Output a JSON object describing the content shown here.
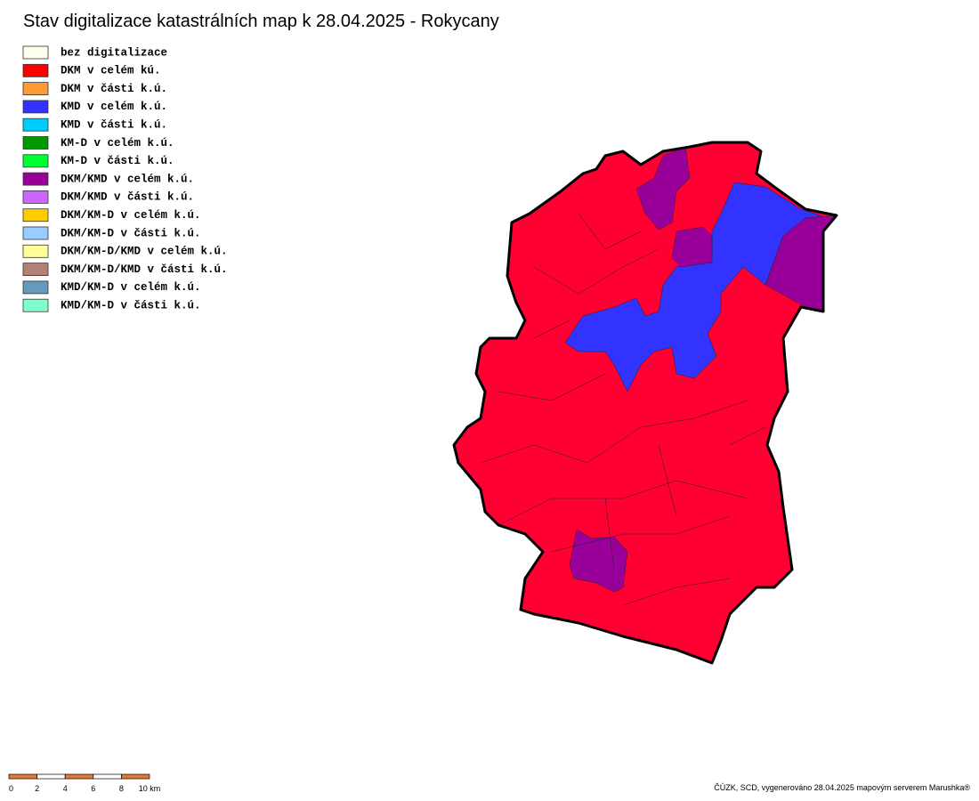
{
  "title": "Stav digitalizace katastrálních map k 28.04.2025 - Rokycany",
  "legend": [
    {
      "label": "bez digitalizace",
      "color": "#ffffee"
    },
    {
      "label": "DKM v celém kú.",
      "color": "#ff0000"
    },
    {
      "label": "DKM v části k.ú.",
      "color": "#ff9933"
    },
    {
      "label": "KMD v celém k.ú.",
      "color": "#3333ff"
    },
    {
      "label": "KMD v části k.ú.",
      "color": "#00ccff"
    },
    {
      "label": "KM-D v celém k.ú.",
      "color": "#009900"
    },
    {
      "label": "KM-D v části k.ú.",
      "color": "#00ff33"
    },
    {
      "label": "DKM/KMD v celém k.ú.",
      "color": "#990099"
    },
    {
      "label": "DKM/KMD v části k.ú.",
      "color": "#cc66ff"
    },
    {
      "label": "DKM/KM-D v celém k.ú.",
      "color": "#ffcc00"
    },
    {
      "label": "DKM/KM-D v části k.ú.",
      "color": "#99ccff"
    },
    {
      "label": "DKM/KM-D/KMD v celém k.ú.",
      "color": "#ffff99"
    },
    {
      "label": "DKM/KM-D/KMD v části k.ú.",
      "color": "#b38077"
    },
    {
      "label": "KMD/KM-D v celém k.ú.",
      "color": "#6699bb"
    },
    {
      "label": "KMD/KM-D v části k.ú.",
      "color": "#80ffcc"
    }
  ],
  "scale": {
    "labels": [
      "0",
      "2",
      "4",
      "6",
      "8",
      "10 km"
    ]
  },
  "credit": "ČÚZK, SCD, vygenerováno 28.04.2025 mapovým serverem Marushka®"
}
